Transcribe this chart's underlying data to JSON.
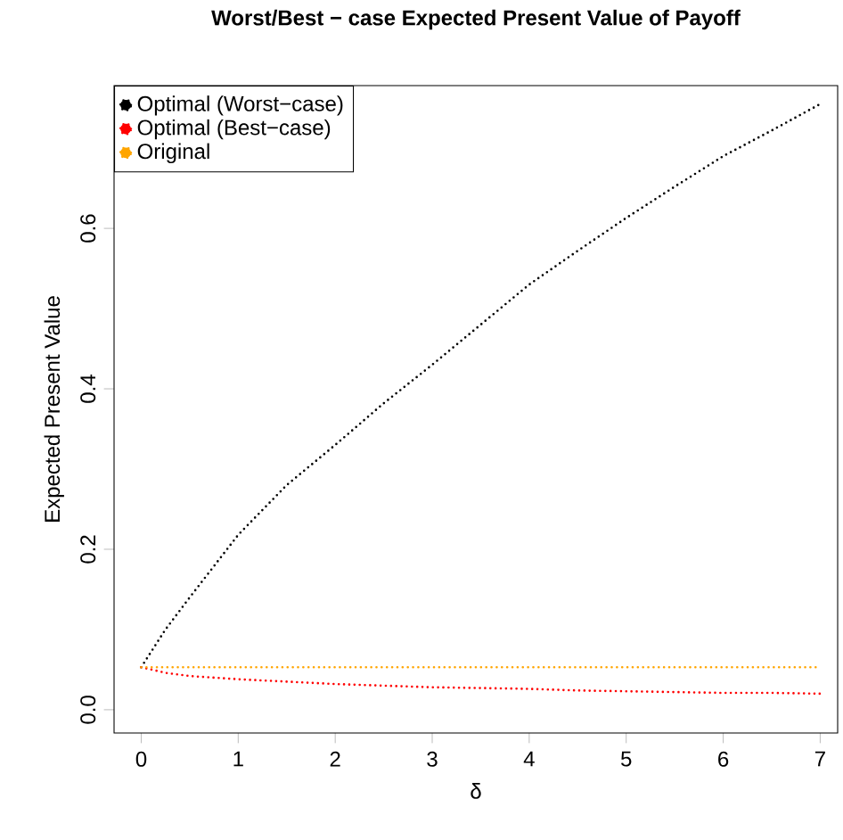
{
  "chart_data": {
    "type": "line",
    "title": "Worst/Best − case Expected Present Value of Payoff",
    "xlabel": "δ",
    "ylabel": "Expected Present Value",
    "x": [
      0,
      0.25,
      0.5,
      1,
      1.5,
      2,
      2.5,
      3,
      3.5,
      4,
      4.5,
      5,
      5.5,
      6,
      6.5,
      7
    ],
    "series": [
      {
        "name": "Optimal (Worst−case)",
        "color": "#000000",
        "values": [
          0.053,
          0.1,
          0.14,
          0.218,
          0.28,
          0.33,
          0.382,
          0.43,
          0.48,
          0.53,
          0.572,
          0.613,
          0.652,
          0.69,
          0.722,
          0.755
        ]
      },
      {
        "name": "Optimal (Best−case)",
        "color": "#ff0000",
        "values": [
          0.053,
          0.046,
          0.042,
          0.038,
          0.035,
          0.032,
          0.03,
          0.028,
          0.027,
          0.026,
          0.024,
          0.023,
          0.022,
          0.021,
          0.021,
          0.02
        ]
      },
      {
        "name": "Original",
        "color": "#ffa500",
        "values": [
          0.053,
          0.053,
          0.053,
          0.053,
          0.053,
          0.053,
          0.053,
          0.053,
          0.053,
          0.053,
          0.053,
          0.053,
          0.053,
          0.053,
          0.053,
          0.053
        ]
      }
    ],
    "xlim": [
      -0.28,
      7.18
    ],
    "ylim": [
      -0.029,
      0.778
    ],
    "xticks": [
      0,
      1,
      2,
      3,
      4,
      5,
      6,
      7
    ],
    "yticks": [
      {
        "value": 0,
        "label": "0.0"
      },
      0.2,
      0.4,
      0.6
    ],
    "line_style": "dotted",
    "marker": "none",
    "legend": "top left",
    "grid": false
  }
}
